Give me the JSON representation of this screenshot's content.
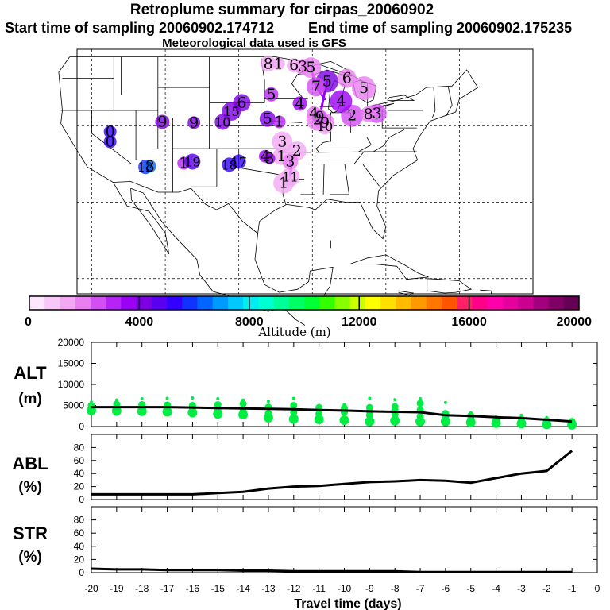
{
  "titles": {
    "main": "Retroplume summary for cirpas_20060902",
    "start": "Start time of sampling 20060902.174712",
    "end": "End time of sampling 20060902.175235",
    "met": "Meteorological data used is GFS"
  },
  "colors": {
    "black": "#000000",
    "green": "#00ee44",
    "scale": [
      "#ffe6ff",
      "#f7c8f7",
      "#f2a8f2",
      "#e880f0",
      "#d24ff2",
      "#b524f5",
      "#9a00f2",
      "#7d00e0",
      "#5a00ee",
      "#3300ff",
      "#1033ff",
      "#0066ff",
      "#0099ff",
      "#00c8ff",
      "#00ecf2",
      "#00ffd0",
      "#00ff99",
      "#00ff66",
      "#00ff33",
      "#33ff00",
      "#88ff00",
      "#ccff00",
      "#ffff00",
      "#ffe000",
      "#ffbb00",
      "#ff9900",
      "#ff7700",
      "#ff5500",
      "#ff2266",
      "#ff0088",
      "#ff00aa",
      "#e6009e",
      "#cc0090",
      "#a3007d",
      "#800066",
      "#660055"
    ]
  },
  "colorbar": {
    "tick_labels": [
      "0",
      "4000",
      "8000",
      "12000",
      "16000",
      "20000"
    ],
    "tick_values": [
      0,
      4000,
      8000,
      12000,
      16000,
      20000
    ],
    "title": "Altitude (m)",
    "max": 20000
  },
  "plume_labels": [
    {
      "text": "1",
      "x": -107.5,
      "y": 35.1,
      "r": 8,
      "alt": 3000
    },
    {
      "text": "2",
      "x": -84.6,
      "y": 41.3,
      "r": 14,
      "alt": 2500
    },
    {
      "text": "3",
      "x": -81.2,
      "y": 41.6,
      "r": 12,
      "alt": 2400
    },
    {
      "text": "4",
      "x": -86.1,
      "y": 43.2,
      "r": 14,
      "alt": 3400
    },
    {
      "text": "5",
      "x": -88.0,
      "y": 45.8,
      "r": 14,
      "alt": 3900
    },
    {
      "text": "5",
      "x": -83.0,
      "y": 44.9,
      "r": 15,
      "alt": 1800
    },
    {
      "text": "6",
      "x": -85.3,
      "y": 46.2,
      "r": 12,
      "alt": 2000
    },
    {
      "text": "7",
      "x": -89.5,
      "y": 45.1,
      "r": 12,
      "alt": 2700
    },
    {
      "text": "8",
      "x": -82.4,
      "y": 41.5,
      "r": 10,
      "alt": 2000
    },
    {
      "text": "9",
      "x": -88.3,
      "y": 40.4,
      "r": 12,
      "alt": 1900
    },
    {
      "text": "10",
      "x": -88.3,
      "y": 39.9,
      "r": 10,
      "alt": 1600
    },
    {
      "text": "11",
      "x": -93.0,
      "y": 33.3,
      "r": 12,
      "alt": 1500
    },
    {
      "text": "3",
      "x": -94.1,
      "y": 37.9,
      "r": 13,
      "alt": 1500
    },
    {
      "text": "2",
      "x": -92.1,
      "y": 36.7,
      "r": 12,
      "alt": 1500
    },
    {
      "text": "1",
      "x": -94.2,
      "y": 36.0,
      "r": 11,
      "alt": 1200
    },
    {
      "text": "4",
      "x": -91.7,
      "y": 42.9,
      "r": 9,
      "alt": 3500
    },
    {
      "text": "5",
      "x": -95.6,
      "y": 44.1,
      "r": 9,
      "alt": 3200
    },
    {
      "text": "2",
      "x": -89.3,
      "y": 40.8,
      "r": 14,
      "alt": 1900
    },
    {
      "text": "4",
      "x": -89.8,
      "y": 41.6,
      "r": 9,
      "alt": 2200
    },
    {
      "text": "9",
      "x": -89.0,
      "y": 41.1,
      "r": 9,
      "alt": 2600
    },
    {
      "text": "8",
      "x": -96.0,
      "y": 48.1,
      "r": 10,
      "alt": 1400
    },
    {
      "text": "1",
      "x": -94.6,
      "y": 48.1,
      "r": 8,
      "alt": 1400
    },
    {
      "text": "5",
      "x": -90.2,
      "y": 47.6,
      "r": 13,
      "alt": 2000
    },
    {
      "text": "3",
      "x": -91.3,
      "y": 47.7,
      "r": 10,
      "alt": 1800
    },
    {
      "text": "6",
      "x": -92.5,
      "y": 47.9,
      "r": 9,
      "alt": 1600
    },
    {
      "text": "9",
      "x": -110.4,
      "y": 40.5,
      "r": 9,
      "alt": 4300
    },
    {
      "text": "9",
      "x": -106.1,
      "y": 40.4,
      "r": 8,
      "alt": 4300
    },
    {
      "text": "10",
      "x": -102.2,
      "y": 40.5,
      "r": 10,
      "alt": 4300
    },
    {
      "text": "15",
      "x": -101.0,
      "y": 41.9,
      "r": 12,
      "alt": 4000
    },
    {
      "text": "6",
      "x": -99.6,
      "y": 43.0,
      "r": 11,
      "alt": 4000
    },
    {
      "text": "5",
      "x": -96.1,
      "y": 40.9,
      "r": 10,
      "alt": 3900
    },
    {
      "text": "1",
      "x": -94.5,
      "y": 40.5,
      "r": 8,
      "alt": 3000
    },
    {
      "text": "4",
      "x": -96.4,
      "y": 36.0,
      "r": 8,
      "alt": 3500
    },
    {
      "text": "3",
      "x": -95.8,
      "y": 35.7,
      "r": 7,
      "alt": 3500
    },
    {
      "text": "17",
      "x": -100.0,
      "y": 35.3,
      "r": 9,
      "alt": 5000
    },
    {
      "text": "18",
      "x": -101.3,
      "y": 34.9,
      "r": 9,
      "alt": 5000
    },
    {
      "text": "19",
      "x": -106.3,
      "y": 35.3,
      "r": 10,
      "alt": 4600
    },
    {
      "text": "12",
      "x": -112.7,
      "y": 34.6,
      "r": 9,
      "alt": 6000
    },
    {
      "text": "8",
      "x": -112.1,
      "y": 34.7,
      "r": 8,
      "alt": 6200
    },
    {
      "text": "0",
      "x": -117.5,
      "y": 39.2,
      "r": 8,
      "alt": 5300
    },
    {
      "text": "0",
      "x": -117.5,
      "y": 37.9,
      "r": 8,
      "alt": 5300
    },
    {
      "text": "1",
      "x": -93.9,
      "y": 32.5,
      "r": 13,
      "alt": 1300
    },
    {
      "text": "3",
      "x": -93.0,
      "y": 35.3,
      "r": 10,
      "alt": 1700
    }
  ],
  "panels": {
    "alt": {
      "label": "ALT",
      "unit": "(m)",
      "ymax": 20000,
      "ticks": [
        0,
        5000,
        10000,
        15000,
        20000
      ]
    },
    "abl": {
      "label": "ABL",
      "unit": "(%)",
      "ymax": 100,
      "ticks": [
        0,
        20,
        40,
        60,
        80
      ]
    },
    "str": {
      "label": "STR",
      "unit": "(%)",
      "ymax": 100,
      "ticks": [
        0,
        20,
        40,
        60,
        80
      ]
    }
  },
  "chart_data": {
    "type": "line",
    "title": "Retroplume summary for cirpas_20060902",
    "xlabel": "Travel time (days)",
    "xlim": [
      -20,
      0
    ],
    "x_ticks": [
      -20,
      -19,
      -18,
      -17,
      -16,
      -15,
      -14,
      -13,
      -12,
      -11,
      -10,
      -9,
      -8,
      -7,
      -6,
      -5,
      -4,
      -3,
      -2,
      -1,
      0
    ],
    "x_tick_labels": [
      "-20",
      "-19",
      "-18",
      "-17",
      "-16",
      "-15",
      "-14",
      "-13",
      "-12",
      "-11",
      "-10",
      "-9",
      "-8",
      "-7",
      "-6",
      "-5",
      "-4",
      "-3",
      "-2",
      "-1",
      "0"
    ],
    "x": [
      -20,
      -19,
      -18,
      -17,
      -16,
      -15,
      -14,
      -13,
      -12,
      -11,
      -10,
      -9,
      -8,
      -7,
      -6,
      -5,
      -4,
      -3,
      -2,
      -1
    ],
    "series": [
      {
        "name": "ALT (m)",
        "values": [
          4600,
          4600,
          4600,
          4600,
          4500,
          4400,
          4300,
          4200,
          4100,
          3900,
          3800,
          3600,
          3500,
          3400,
          2700,
          2500,
          2200,
          2000,
          1600,
          1200
        ]
      },
      {
        "name": "ABL (%)",
        "values": [
          8,
          8,
          8,
          8,
          8,
          10,
          12,
          17,
          20,
          21,
          24,
          27,
          28,
          30,
          29,
          26,
          33,
          40,
          44,
          75
        ]
      },
      {
        "name": "STR (%)",
        "values": [
          6,
          5,
          5,
          4,
          4,
          4,
          3,
          3,
          2,
          2,
          2,
          2,
          2,
          1,
          1,
          1,
          1,
          1,
          1,
          1
        ]
      }
    ],
    "alt_scatter": [
      {
        "x": -20,
        "y": [
          3800,
          4200,
          5000,
          5800
        ]
      },
      {
        "x": -19,
        "y": [
          3700,
          4300,
          5300,
          6300
        ]
      },
      {
        "x": -18,
        "y": [
          3600,
          4200,
          5200,
          6600
        ]
      },
      {
        "x": -17,
        "y": [
          3500,
          4000,
          5100,
          6700
        ]
      },
      {
        "x": -16,
        "y": [
          3300,
          3900,
          5000,
          6800
        ]
      },
      {
        "x": -15,
        "y": [
          3000,
          3800,
          5200,
          6600
        ]
      },
      {
        "x": -14,
        "y": [
          2800,
          3600,
          5400,
          6300
        ]
      },
      {
        "x": -13,
        "y": [
          2100,
          3100,
          4600,
          6000
        ]
      },
      {
        "x": -12,
        "y": [
          1800,
          3300,
          5000,
          6700
        ]
      },
      {
        "x": -11,
        "y": [
          1700,
          3000,
          4500,
          5000
        ]
      },
      {
        "x": -10,
        "y": [
          1500,
          3400,
          4400,
          5300
        ]
      },
      {
        "x": -9,
        "y": [
          1200,
          2700,
          3600,
          4500,
          6700
        ]
      },
      {
        "x": -8,
        "y": [
          1400,
          2900,
          3900,
          4700,
          6400
        ]
      },
      {
        "x": -7,
        "y": [
          1200,
          2400,
          3900,
          5500,
          6600
        ]
      },
      {
        "x": -6,
        "y": [
          1200,
          2300,
          3100,
          5700
        ]
      },
      {
        "x": -5,
        "y": [
          1000,
          1800,
          2600,
          3300
        ]
      },
      {
        "x": -4,
        "y": [
          800,
          1500,
          2300
        ]
      },
      {
        "x": -3,
        "y": [
          700,
          1700,
          2700
        ]
      },
      {
        "x": -2,
        "y": [
          500,
          1400,
          2100
        ]
      },
      {
        "x": -1,
        "y": [
          400,
          1200
        ]
      }
    ]
  }
}
